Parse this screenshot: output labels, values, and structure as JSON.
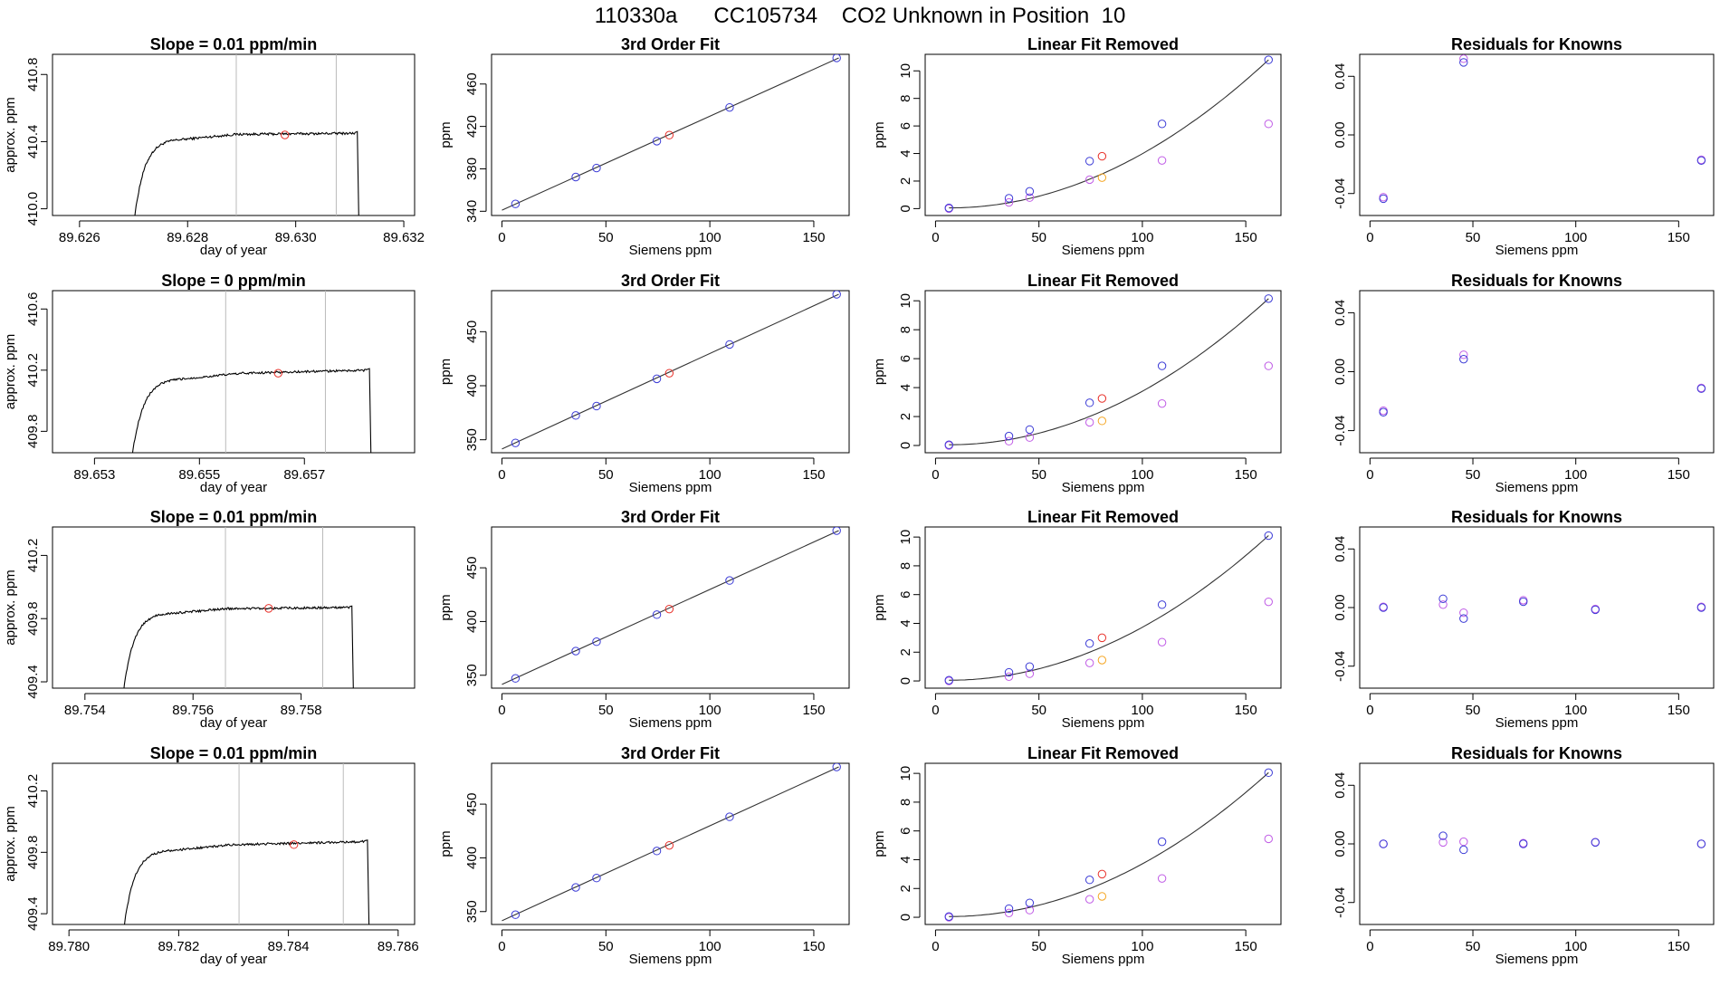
{
  "figure": {
    "title": "110330a      CC105734    CO2 Unknown in Position  10"
  },
  "colors": {
    "trace": "#000000",
    "curve": "#333333",
    "window_line": "#bbbbbb",
    "sample_point": "#e8312a",
    "known_point": "#3b3bd6",
    "linear_removed_point": "#c05ce6",
    "sample_linear_removed": "#f5a623",
    "residual_a": "#3b3bd6",
    "residual_b": "#c05ce6"
  },
  "chart_data": [
    {
      "type": "line",
      "panel": "timeseries",
      "row": 0,
      "title": "Slope =  0.01  ppm/min",
      "xlabel": "day of year",
      "ylabel": "approx. ppm",
      "xlim": [
        89.6255,
        89.6322
      ],
      "ylim": [
        409.96,
        410.92
      ],
      "xticks": [
        89.626,
        89.628,
        89.63,
        89.632
      ],
      "xtick_labels": [
        "89.626",
        "89.628",
        "89.630",
        "89.632"
      ],
      "yticks": [
        410.0,
        410.4,
        410.8
      ],
      "ytick_labels": [
        "410.0",
        "410.4",
        "410.8"
      ],
      "trace": {
        "start": 89.627,
        "rise": 89.6273,
        "plateau": 89.6278,
        "end": 89.6311,
        "base": 409.9,
        "plateau_level": 410.44,
        "final": 410.45
      },
      "window": [
        89.6289,
        89.63075
      ],
      "marker": {
        "x": 89.6298,
        "y": 410.44
      }
    },
    {
      "type": "scatter",
      "panel": "fit",
      "row": 0,
      "title": "3rd Order Fit",
      "xlabel": "Siemens ppm",
      "ylabel": "ppm",
      "xlim": [
        -5,
        167
      ],
      "ylim": [
        336,
        488
      ],
      "xticks": [
        0,
        50,
        100,
        150
      ],
      "xtick_labels": [
        "0",
        "50",
        "100",
        "150"
      ],
      "yticks": [
        340,
        380,
        420,
        460
      ],
      "ytick_labels": [
        "340",
        "380",
        "420",
        "460"
      ],
      "line": [
        [
          0,
          341.0
        ],
        [
          162,
          484.6
        ]
      ],
      "known_points": [
        [
          6.5,
          346.9
        ],
        [
          35.5,
          372.3
        ],
        [
          45.5,
          380.8
        ],
        [
          74.5,
          406.1
        ],
        [
          109.5,
          437.9
        ],
        [
          161,
          484.6
        ]
      ],
      "sample_point": [
        80.5,
        411.8
      ]
    },
    {
      "type": "scatter",
      "panel": "linear-removed",
      "row": 0,
      "title": "Linear Fit Removed",
      "xlabel": "Siemens ppm",
      "ylabel": "ppm",
      "xlim": [
        -5,
        167
      ],
      "ylim": [
        -0.5,
        11.2
      ],
      "xticks": [
        0,
        50,
        100,
        150
      ],
      "xtick_labels": [
        "0",
        "50",
        "100",
        "150"
      ],
      "yticks": [
        0,
        2,
        4,
        6,
        8,
        10
      ],
      "ytick_labels": [
        "0",
        "2",
        "4",
        "6",
        "8",
        "10"
      ],
      "curve_end": 10.8,
      "known_points": [
        [
          6.5,
          0.05
        ],
        [
          35.5,
          0.75
        ],
        [
          45.5,
          1.25
        ],
        [
          74.5,
          3.45
        ],
        [
          109.5,
          6.15
        ],
        [
          161,
          10.8
        ]
      ],
      "sample_point": [
        80.5,
        3.8
      ],
      "removed_points": [
        [
          6.5,
          0.0
        ],
        [
          35.5,
          0.45
        ],
        [
          45.5,
          0.8
        ],
        [
          74.5,
          2.1
        ],
        [
          109.5,
          3.5
        ],
        [
          161,
          6.15
        ]
      ],
      "sample_removed": [
        80.5,
        2.25
      ]
    },
    {
      "type": "scatter",
      "panel": "residuals",
      "row": 0,
      "title": "Residuals for Knowns",
      "xlabel": "Siemens ppm",
      "ylabel": "",
      "xlim": [
        -5,
        167
      ],
      "ylim": [
        -0.055,
        0.055
      ],
      "xticks": [
        0,
        50,
        100,
        150
      ],
      "xtick_labels": [
        "0",
        "50",
        "100",
        "150"
      ],
      "yticks": [
        -0.04,
        0.0,
        0.04
      ],
      "ytick_labels": [
        "-0.04",
        "0.00",
        "0.04"
      ],
      "residuals_a": [
        [
          6.5,
          -0.0435
        ],
        [
          45.5,
          0.0495
        ],
        [
          161,
          -0.0175
        ]
      ],
      "residuals_b": [
        [
          6.5,
          -0.0425
        ],
        [
          45.5,
          0.052
        ],
        [
          161,
          -0.017
        ]
      ]
    },
    {
      "type": "line",
      "panel": "timeseries",
      "row": 1,
      "title": "Slope =  0  ppm/min",
      "xlabel": "day of year",
      "ylabel": "approx. ppm",
      "xlim": [
        89.6522,
        89.6591
      ],
      "ylim": [
        409.66,
        410.72
      ],
      "xticks": [
        89.653,
        89.655,
        89.657
      ],
      "xtick_labels": [
        "89.653",
        "89.655",
        "89.657"
      ],
      "yticks": [
        409.8,
        410.2,
        410.6
      ],
      "ytick_labels": [
        "409.8",
        "410.2",
        "410.6"
      ],
      "trace": {
        "start": 89.6537,
        "rise": 89.654,
        "plateau": 89.6546,
        "end": 89.6582,
        "base": 409.6,
        "plateau_level": 410.17,
        "final": 410.2
      },
      "window": [
        89.6555,
        89.6574
      ],
      "marker": {
        "x": 89.6565,
        "y": 410.18
      }
    },
    {
      "type": "scatter",
      "panel": "fit",
      "row": 1,
      "title": "3rd Order Fit",
      "xlabel": "Siemens ppm",
      "ylabel": "ppm",
      "xlim": [
        -5,
        167
      ],
      "ylim": [
        338,
        488
      ],
      "xticks": [
        0,
        50,
        100,
        150
      ],
      "xtick_labels": [
        "0",
        "50",
        "100",
        "150"
      ],
      "yticks": [
        350,
        400,
        450
      ],
      "ytick_labels": [
        "350",
        "400",
        "450"
      ],
      "line": [
        [
          0,
          341.5
        ],
        [
          162,
          484.6
        ]
      ],
      "known_points": [
        [
          6.5,
          347.1
        ],
        [
          35.5,
          372.5
        ],
        [
          45.5,
          381.2
        ],
        [
          74.5,
          406.4
        ],
        [
          109.5,
          438.2
        ],
        [
          161,
          484.6
        ]
      ],
      "sample_point": [
        80.5,
        411.6
      ]
    },
    {
      "type": "scatter",
      "panel": "linear-removed",
      "row": 1,
      "title": "Linear Fit Removed",
      "xlabel": "Siemens ppm",
      "ylabel": "ppm",
      "xlim": [
        -5,
        167
      ],
      "ylim": [
        -0.5,
        10.7
      ],
      "xticks": [
        0,
        50,
        100,
        150
      ],
      "xtick_labels": [
        "0",
        "50",
        "100",
        "150"
      ],
      "yticks": [
        0,
        2,
        4,
        6,
        8,
        10
      ],
      "ytick_labels": [
        "0",
        "2",
        "4",
        "6",
        "8",
        "10"
      ],
      "curve_end": 10.15,
      "known_points": [
        [
          6.5,
          0.05
        ],
        [
          35.5,
          0.65
        ],
        [
          45.5,
          1.1
        ],
        [
          74.5,
          2.95
        ],
        [
          109.5,
          5.5
        ],
        [
          161,
          10.15
        ]
      ],
      "sample_point": [
        80.5,
        3.25
      ],
      "removed_points": [
        [
          6.5,
          0.0
        ],
        [
          35.5,
          0.3
        ],
        [
          45.5,
          0.55
        ],
        [
          74.5,
          1.6
        ],
        [
          109.5,
          2.9
        ],
        [
          161,
          5.5
        ]
      ],
      "sample_removed": [
        80.5,
        1.7
      ]
    },
    {
      "type": "scatter",
      "panel": "residuals",
      "row": 1,
      "title": "Residuals for Knowns",
      "xlabel": "Siemens ppm",
      "ylabel": "",
      "xlim": [
        -5,
        167
      ],
      "ylim": [
        -0.055,
        0.055
      ],
      "xticks": [
        0,
        50,
        100,
        150
      ],
      "xtick_labels": [
        "0",
        "50",
        "100",
        "150"
      ],
      "yticks": [
        -0.04,
        0.0,
        0.04
      ],
      "ytick_labels": [
        "-0.04",
        "0.00",
        "0.04"
      ],
      "residuals_a": [
        [
          6.5,
          -0.0275
        ],
        [
          45.5,
          0.0085
        ],
        [
          161,
          -0.0115
        ]
      ],
      "residuals_b": [
        [
          6.5,
          -0.0265
        ],
        [
          45.5,
          0.0115
        ],
        [
          161,
          -0.011
        ]
      ]
    },
    {
      "type": "line",
      "panel": "timeseries",
      "row": 2,
      "title": "Slope =  0.01  ppm/min",
      "xlabel": "day of year",
      "ylabel": "approx. ppm",
      "xlim": [
        89.7534,
        89.7601
      ],
      "ylim": [
        409.36,
        410.38
      ],
      "xticks": [
        89.754,
        89.756,
        89.758
      ],
      "xtick_labels": [
        "89.754",
        "89.756",
        "89.758"
      ],
      "yticks": [
        409.4,
        409.8,
        410.2
      ],
      "ytick_labels": [
        "409.4",
        "409.8",
        "410.2"
      ],
      "trace": {
        "start": 89.7547,
        "rise": 89.755,
        "plateau": 89.7555,
        "end": 89.7589,
        "base": 409.3,
        "plateau_level": 409.86,
        "final": 409.87
      },
      "window": [
        89.7566,
        89.7584
      ],
      "marker": {
        "x": 89.7574,
        "y": 409.865
      }
    },
    {
      "type": "scatter",
      "panel": "fit",
      "row": 2,
      "title": "3rd Order Fit",
      "xlabel": "Siemens ppm",
      "ylabel": "ppm",
      "xlim": [
        -5,
        167
      ],
      "ylim": [
        338,
        488
      ],
      "xticks": [
        0,
        50,
        100,
        150
      ],
      "xtick_labels": [
        "0",
        "50",
        "100",
        "150"
      ],
      "yticks": [
        350,
        400,
        450
      ],
      "ytick_labels": [
        "350",
        "400",
        "450"
      ],
      "line": [
        [
          0,
          341.5
        ],
        [
          162,
          484.6
        ]
      ],
      "known_points": [
        [
          6.5,
          347.1
        ],
        [
          35.5,
          372.5
        ],
        [
          45.5,
          381.2
        ],
        [
          74.5,
          406.4
        ],
        [
          109.5,
          438.2
        ],
        [
          161,
          484.6
        ]
      ],
      "sample_point": [
        80.5,
        411.6
      ]
    },
    {
      "type": "scatter",
      "panel": "linear-removed",
      "row": 2,
      "title": "Linear Fit Removed",
      "xlabel": "Siemens ppm",
      "ylabel": "ppm",
      "xlim": [
        -5,
        167
      ],
      "ylim": [
        -0.5,
        10.7
      ],
      "xticks": [
        0,
        50,
        100,
        150
      ],
      "xtick_labels": [
        "0",
        "50",
        "100",
        "150"
      ],
      "yticks": [
        0,
        2,
        4,
        6,
        8,
        10
      ],
      "ytick_labels": [
        "0",
        "2",
        "4",
        "6",
        "8",
        "10"
      ],
      "curve_end": 10.1,
      "known_points": [
        [
          6.5,
          0.05
        ],
        [
          35.5,
          0.6
        ],
        [
          45.5,
          1.0
        ],
        [
          74.5,
          2.6
        ],
        [
          109.5,
          5.3
        ],
        [
          161,
          10.1
        ]
      ],
      "sample_point": [
        80.5,
        3.0
      ],
      "removed_points": [
        [
          6.5,
          0.0
        ],
        [
          35.5,
          0.3
        ],
        [
          45.5,
          0.5
        ],
        [
          74.5,
          1.25
        ],
        [
          109.5,
          2.7
        ],
        [
          161,
          5.5
        ]
      ],
      "sample_removed": [
        80.5,
        1.45
      ]
    },
    {
      "type": "scatter",
      "panel": "residuals",
      "row": 2,
      "title": "Residuals for Knowns",
      "xlabel": "Siemens ppm",
      "ylabel": "",
      "xlim": [
        -5,
        167
      ],
      "ylim": [
        -0.055,
        0.055
      ],
      "xticks": [
        0,
        50,
        100,
        150
      ],
      "xtick_labels": [
        "0",
        "50",
        "100",
        "150"
      ],
      "yticks": [
        -0.04,
        0.0,
        0.04
      ],
      "ytick_labels": [
        "-0.04",
        "0.00",
        "0.04"
      ],
      "residuals_a": [
        [
          6.5,
          0.0
        ],
        [
          35.5,
          0.006
        ],
        [
          45.5,
          -0.0075
        ],
        [
          74.5,
          0.004
        ],
        [
          109.5,
          -0.0015
        ],
        [
          161,
          0.0
        ]
      ],
      "residuals_b": [
        [
          6.5,
          0.0005
        ],
        [
          35.5,
          0.002
        ],
        [
          45.5,
          -0.0035
        ],
        [
          74.5,
          0.005
        ],
        [
          109.5,
          -0.001
        ],
        [
          161,
          0.0005
        ]
      ]
    },
    {
      "type": "line",
      "panel": "timeseries",
      "row": 3,
      "title": "Slope =  0.01  ppm/min",
      "xlabel": "day of year",
      "ylabel": "approx. ppm",
      "xlim": [
        89.7797,
        89.7863
      ],
      "ylim": [
        409.33,
        410.38
      ],
      "xticks": [
        89.78,
        89.782,
        89.784,
        89.786
      ],
      "xtick_labels": [
        "89.780",
        "89.782",
        "89.784",
        "89.786"
      ],
      "yticks": [
        409.4,
        409.8,
        410.2
      ],
      "ytick_labels": [
        "409.4",
        "409.8",
        "410.2"
      ],
      "trace": {
        "start": 89.781,
        "rise": 89.7813,
        "plateau": 89.7818,
        "end": 89.7854,
        "base": 409.3,
        "plateau_level": 409.84,
        "final": 409.87
      },
      "window": [
        89.7831,
        89.785
      ],
      "marker": {
        "x": 89.7841,
        "y": 409.85
      }
    },
    {
      "type": "scatter",
      "panel": "fit",
      "row": 3,
      "title": "3rd Order Fit",
      "xlabel": "Siemens ppm",
      "ylabel": "ppm",
      "xlim": [
        -5,
        167
      ],
      "ylim": [
        338,
        488
      ],
      "xticks": [
        0,
        50,
        100,
        150
      ],
      "xtick_labels": [
        "0",
        "50",
        "100",
        "150"
      ],
      "yticks": [
        350,
        400,
        450
      ],
      "ytick_labels": [
        "350",
        "400",
        "450"
      ],
      "line": [
        [
          0,
          341.5
        ],
        [
          162,
          484.6
        ]
      ],
      "known_points": [
        [
          6.5,
          347.1
        ],
        [
          35.5,
          372.5
        ],
        [
          45.5,
          381.2
        ],
        [
          74.5,
          406.4
        ],
        [
          109.5,
          438.2
        ],
        [
          161,
          484.6
        ]
      ],
      "sample_point": [
        80.5,
        411.6
      ]
    },
    {
      "type": "scatter",
      "panel": "linear-removed",
      "row": 3,
      "title": "Linear Fit Removed",
      "xlabel": "Siemens ppm",
      "ylabel": "ppm",
      "xlim": [
        -5,
        167
      ],
      "ylim": [
        -0.5,
        10.7
      ],
      "xticks": [
        0,
        50,
        100,
        150
      ],
      "xtick_labels": [
        "0",
        "50",
        "100",
        "150"
      ],
      "yticks": [
        0,
        2,
        4,
        6,
        8,
        10
      ],
      "ytick_labels": [
        "0",
        "2",
        "4",
        "6",
        "8",
        "10"
      ],
      "curve_end": 10.05,
      "known_points": [
        [
          6.5,
          0.05
        ],
        [
          35.5,
          0.6
        ],
        [
          45.5,
          1.0
        ],
        [
          74.5,
          2.6
        ],
        [
          109.5,
          5.25
        ],
        [
          161,
          10.05
        ]
      ],
      "sample_point": [
        80.5,
        3.0
      ],
      "removed_points": [
        [
          6.5,
          0.0
        ],
        [
          35.5,
          0.3
        ],
        [
          45.5,
          0.5
        ],
        [
          74.5,
          1.25
        ],
        [
          109.5,
          2.7
        ],
        [
          161,
          5.45
        ]
      ],
      "sample_removed": [
        80.5,
        1.45
      ]
    },
    {
      "type": "scatter",
      "panel": "residuals",
      "row": 3,
      "title": "Residuals for Knowns",
      "xlabel": "Siemens ppm",
      "ylabel": "",
      "xlim": [
        -5,
        167
      ],
      "ylim": [
        -0.055,
        0.055
      ],
      "xticks": [
        0,
        50,
        100,
        150
      ],
      "xtick_labels": [
        "0",
        "50",
        "100",
        "150"
      ],
      "yticks": [
        -0.04,
        0.0,
        0.04
      ],
      "ytick_labels": [
        "-0.04",
        "0.00",
        "0.04"
      ],
      "residuals_a": [
        [
          6.5,
          0.0
        ],
        [
          35.5,
          0.0055
        ],
        [
          45.5,
          -0.004
        ],
        [
          74.5,
          0.0
        ],
        [
          109.5,
          0.001
        ],
        [
          161,
          0.0
        ]
      ],
      "residuals_b": [
        [
          6.5,
          0.0
        ],
        [
          35.5,
          0.001
        ],
        [
          45.5,
          0.0015
        ],
        [
          74.5,
          0.0005
        ],
        [
          109.5,
          0.0012
        ],
        [
          161,
          0.0
        ]
      ]
    }
  ]
}
